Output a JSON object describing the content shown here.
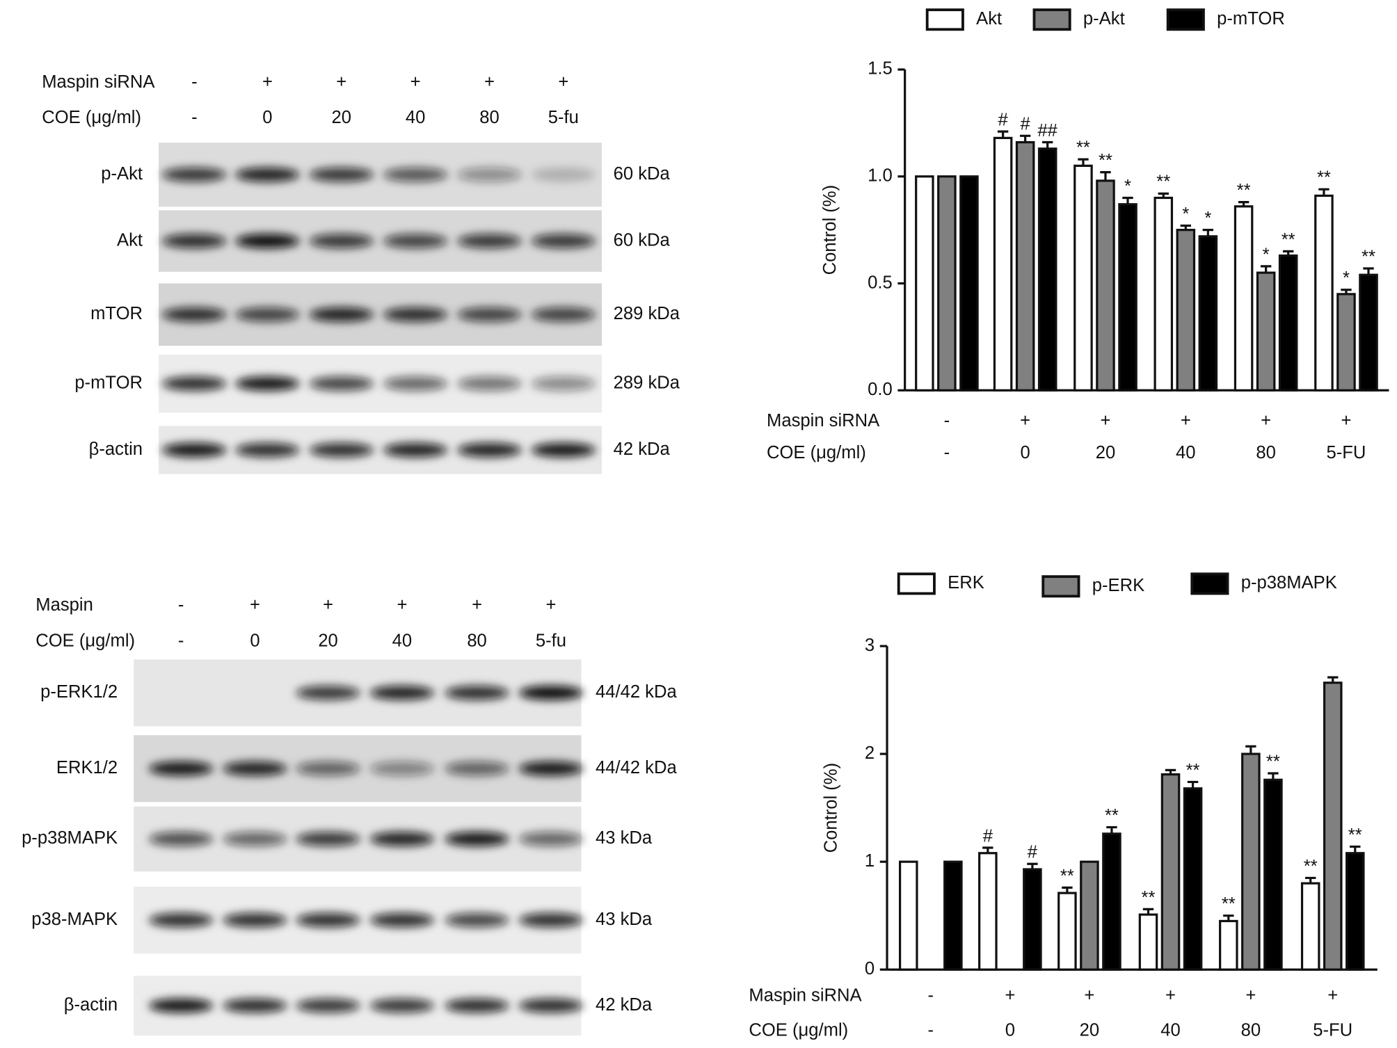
{
  "blots": [
    {
      "header_rows": [
        {
          "label": "Maspin siRNA",
          "values": [
            "-",
            "+",
            "+",
            "+",
            "+",
            "+"
          ]
        },
        {
          "label": "COE (μg/ml)",
          "values": [
            "-",
            "0",
            "20",
            "40",
            "80",
            "5-fu"
          ]
        }
      ],
      "rows": [
        {
          "label": "p-Akt",
          "size": "60 kDa"
        },
        {
          "label": "Akt",
          "size": "60 kDa"
        },
        {
          "label": "mTOR",
          "size": "289 kDa"
        },
        {
          "label": "p-mTOR",
          "size": "289 kDa"
        },
        {
          "label": "β-actin",
          "size": "42 kDa"
        }
      ]
    },
    {
      "header_rows": [
        {
          "label": "Maspin",
          "values": [
            "-",
            "+",
            "+",
            "+",
            "+",
            "+"
          ]
        },
        {
          "label": "COE (μg/ml)",
          "values": [
            "-",
            "0",
            "20",
            "40",
            "80",
            "5-fu"
          ]
        }
      ],
      "rows": [
        {
          "label": "p-ERK1/2",
          "size": "44/42 kDa"
        },
        {
          "label": "ERK1/2",
          "size": "44/42 kDa"
        },
        {
          "label": "p-p38MAPK",
          "size": "43 kDa"
        },
        {
          "label": "p38-MAPK",
          "size": "43 kDa"
        },
        {
          "label": "β-actin",
          "size": "42 kDa"
        }
      ]
    }
  ],
  "chart_data": [
    {
      "type": "bar",
      "y_label": "Control (%)",
      "legend": "top",
      "category_labels": [
        "Maspin siRNA",
        "COE (μg/ml)"
      ],
      "categories": [
        [
          "-",
          "-"
        ],
        [
          "+",
          "0"
        ],
        [
          "+",
          "20"
        ],
        [
          "+",
          "40"
        ],
        [
          "+",
          "80"
        ],
        [
          "+",
          "5-FU"
        ]
      ],
      "ylim": [
        0,
        1.5
      ],
      "yticks": [
        {
          "value": 0,
          "label": "0.0"
        },
        {
          "value": 0.5,
          "label": "0.5"
        },
        {
          "value": 1,
          "label": "1.0"
        },
        {
          "value": 1.5,
          "label": "1.5"
        }
      ],
      "series": [
        {
          "name": "Akt",
          "color": "#ffffff",
          "values": [
            1.0,
            1.18,
            1.05,
            0.9,
            0.86,
            0.91
          ],
          "errors": [
            null,
            0.03,
            0.03,
            0.02,
            0.02,
            0.03
          ],
          "annotations": [
            null,
            "#",
            "**",
            "**",
            "**",
            "**"
          ]
        },
        {
          "name": "p-Akt",
          "color": "#808080",
          "values": [
            1.0,
            1.16,
            0.98,
            0.75,
            0.55,
            0.45
          ],
          "errors": [
            null,
            0.03,
            0.04,
            0.02,
            0.03,
            0.02
          ],
          "annotations": [
            null,
            "#",
            "**",
            "*",
            "*",
            "*"
          ]
        },
        {
          "name": "p-mTOR",
          "color": "#000000",
          "values": [
            1.0,
            1.13,
            0.87,
            0.72,
            0.63,
            0.54
          ],
          "errors": [
            null,
            0.03,
            0.03,
            0.03,
            0.02,
            0.03
          ],
          "annotations": [
            null,
            "##",
            "*",
            "*",
            "**",
            "**"
          ]
        }
      ]
    },
    {
      "type": "bar",
      "y_label": "Control (%)",
      "legend": "top",
      "category_labels": [
        "Maspin siRNA",
        "COE (μg/ml)"
      ],
      "categories": [
        [
          "-",
          "-"
        ],
        [
          "+",
          "0"
        ],
        [
          "+",
          "20"
        ],
        [
          "+",
          "40"
        ],
        [
          "+",
          "80"
        ],
        [
          "+",
          "5-FU"
        ]
      ],
      "ylim": [
        0,
        3
      ],
      "yticks": [
        0,
        1,
        2,
        3
      ],
      "series": [
        {
          "name": "ERK",
          "color": "#ffffff",
          "values": [
            1.0,
            1.08,
            0.71,
            0.51,
            0.45,
            0.8
          ],
          "errors": [
            null,
            0.05,
            0.05,
            0.05,
            0.05,
            0.05
          ],
          "annotations": [
            null,
            "#",
            "**",
            "**",
            "**",
            "**"
          ]
        },
        {
          "name": "p-ERK",
          "color": "#808080",
          "values": [
            null,
            null,
            1.0,
            1.81,
            2.0,
            2.66
          ],
          "errors": [
            null,
            null,
            null,
            0.04,
            0.07,
            0.05
          ],
          "annotations": [
            null,
            null,
            null,
            null,
            null,
            null
          ]
        },
        {
          "name": "p-p38MAPK",
          "color": "#000000",
          "values": [
            1.0,
            0.93,
            1.26,
            1.68,
            1.76,
            1.08
          ],
          "errors": [
            null,
            0.05,
            0.06,
            0.06,
            0.06,
            0.06
          ],
          "annotations": [
            null,
            "#",
            "**",
            "**",
            "**",
            "**"
          ]
        }
      ]
    }
  ]
}
